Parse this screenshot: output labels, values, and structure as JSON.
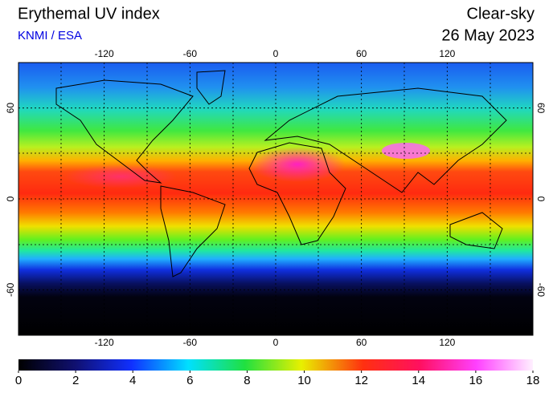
{
  "header": {
    "title": "Erythemal UV index",
    "source": "KNMI / ESA",
    "condition": "Clear-sky",
    "date": "26 May 2023"
  },
  "map": {
    "lon_ticks": [
      -120,
      -60,
      0,
      60,
      120
    ],
    "lat_ticks": [
      60,
      0,
      -60
    ]
  },
  "colorbar": {
    "ticks": [
      0,
      2,
      4,
      6,
      8,
      10,
      12,
      14,
      16,
      18
    ]
  }
}
